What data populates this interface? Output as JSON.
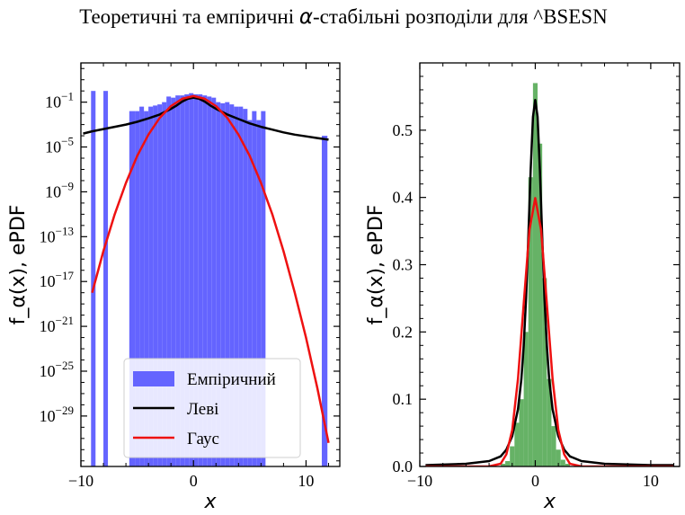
{
  "title_prefix": "Теоретичні та емпіричні ",
  "title_alpha": "α",
  "title_suffix": "-стабільні розподіли для ^BSESN",
  "colors": {
    "empirical_left": "#6464ff",
    "empirical_right": "#66b266",
    "levy": "#000000",
    "gauss": "#ee1111"
  },
  "chart_data": [
    {
      "type": "bar",
      "scale_y": "log",
      "xlabel": "x",
      "ylabel": "f_α(x), ePDF",
      "xlim": [
        -10,
        13
      ],
      "ylim_log10": [
        -33.5,
        2.5
      ],
      "xticks": [
        -10,
        0,
        10
      ],
      "xtick_labels": [
        "−10",
        "0",
        "10"
      ],
      "ytick_exponents": [
        -1,
        -5,
        -9,
        -13,
        -17,
        -21,
        -25,
        -29
      ],
      "ytick_base": "10",
      "legend": {
        "placement": "lower center",
        "entries": [
          "Емпіричний",
          "Леві",
          "Гаус"
        ]
      },
      "histogram": {
        "bins": [
          {
            "x0": -9.1,
            "x1": -8.7,
            "log10": 0
          },
          {
            "x0": -8.0,
            "x1": -7.6,
            "log10": 0
          },
          {
            "x0": -5.7,
            "x1": -5.2,
            "log10": -1.8
          },
          {
            "x0": -5.2,
            "x1": -4.8,
            "log10": -1.8
          },
          {
            "x0": -4.8,
            "x1": -4.4,
            "log10": -1.4
          },
          {
            "x0": -4.4,
            "x1": -4.0,
            "log10": -1.8
          },
          {
            "x0": -4.0,
            "x1": -3.6,
            "log10": -1.4
          },
          {
            "x0": -3.6,
            "x1": -3.2,
            "log10": -1.3
          },
          {
            "x0": -3.2,
            "x1": -2.8,
            "log10": -1.2
          },
          {
            "x0": -2.8,
            "x1": -2.4,
            "log10": -1.0
          },
          {
            "x0": -2.4,
            "x1": -2.0,
            "log10": -0.5
          },
          {
            "x0": -2.0,
            "x1": -1.6,
            "log10": -0.6
          },
          {
            "x0": -1.6,
            "x1": -1.2,
            "log10": -0.4
          },
          {
            "x0": -1.2,
            "x1": -0.8,
            "log10": -0.4
          },
          {
            "x0": -0.8,
            "x1": -0.4,
            "log10": -0.3
          },
          {
            "x0": -0.4,
            "x1": 0.0,
            "log10": -0.2
          },
          {
            "x0": 0.0,
            "x1": 0.4,
            "log10": -0.3
          },
          {
            "x0": 0.4,
            "x1": 0.8,
            "log10": -0.3
          },
          {
            "x0": 0.8,
            "x1": 1.2,
            "log10": -0.4
          },
          {
            "x0": 1.2,
            "x1": 1.6,
            "log10": -0.5
          },
          {
            "x0": 1.6,
            "x1": 2.0,
            "log10": -0.6
          },
          {
            "x0": 2.0,
            "x1": 2.4,
            "log10": -1.0
          },
          {
            "x0": 2.4,
            "x1": 2.8,
            "log10": -1.1
          },
          {
            "x0": 2.8,
            "x1": 3.2,
            "log10": -1.0
          },
          {
            "x0": 3.2,
            "x1": 3.6,
            "log10": -1.2
          },
          {
            "x0": 3.6,
            "x1": 4.0,
            "log10": -1.4
          },
          {
            "x0": 4.0,
            "x1": 4.4,
            "log10": -1.4
          },
          {
            "x0": 4.4,
            "x1": 4.8,
            "log10": -1.6
          },
          {
            "x0": 4.8,
            "x1": 5.2,
            "log10": -2.6
          },
          {
            "x0": 5.2,
            "x1": 5.6,
            "log10": -1.8
          },
          {
            "x0": 5.6,
            "x1": 6.0,
            "log10": -2.6
          },
          {
            "x0": 6.0,
            "x1": 6.4,
            "log10": -1.8
          },
          {
            "x0": 11.4,
            "x1": 11.9,
            "log10": -4.0
          }
        ]
      },
      "series": [
        {
          "name": "Леві",
          "x": [
            -9.8,
            -9,
            -8,
            -7,
            -6,
            -5,
            -4,
            -3,
            -2,
            -1.5,
            -1,
            -0.5,
            0,
            0.5,
            1,
            1.5,
            2,
            3,
            4,
            5,
            6,
            7,
            8,
            9,
            10,
            11,
            12
          ],
          "log10": [
            -3.8,
            -3.6,
            -3.4,
            -3.2,
            -3.0,
            -2.75,
            -2.45,
            -2.1,
            -1.6,
            -1.3,
            -0.95,
            -0.7,
            -0.6,
            -0.7,
            -0.95,
            -1.3,
            -1.6,
            -2.1,
            -2.5,
            -2.9,
            -3.2,
            -3.45,
            -3.7,
            -3.9,
            -4.05,
            -4.2,
            -4.35
          ]
        },
        {
          "name": "Гаус",
          "x": [
            -9,
            -8,
            -7,
            -6,
            -5,
            -4,
            -3,
            -2,
            -1,
            0,
            1,
            2,
            3,
            4,
            5,
            6,
            7,
            8,
            9,
            10,
            11,
            12
          ],
          "log10": [
            -18.0,
            -14.3,
            -11.0,
            -8.2,
            -5.8,
            -3.9,
            -2.4,
            -1.35,
            -0.7,
            -0.45,
            -0.7,
            -1.35,
            -2.4,
            -3.9,
            -5.8,
            -8.2,
            -11.0,
            -14.3,
            -18.0,
            -22.0,
            -26.5,
            -31.4
          ]
        }
      ]
    },
    {
      "type": "bar",
      "scale_y": "linear",
      "xlabel": "x",
      "ylabel": "f_α(x), ePDF",
      "xlim": [
        -10,
        12.5
      ],
      "ylim": [
        0,
        0.6
      ],
      "xticks": [
        -10,
        0,
        10
      ],
      "xtick_labels": [
        "−10",
        "0",
        "10"
      ],
      "yticks": [
        0.0,
        0.1,
        0.2,
        0.3,
        0.4,
        0.5
      ],
      "ytick_labels": [
        "0.0",
        "0.1",
        "0.2",
        "0.3",
        "0.4",
        "0.5"
      ],
      "histogram": {
        "bins": [
          {
            "x0": -3.0,
            "x1": -2.6,
            "y": 0.004
          },
          {
            "x0": -2.6,
            "x1": -2.2,
            "y": 0.008
          },
          {
            "x0": -2.2,
            "x1": -1.8,
            "y": 0.03
          },
          {
            "x0": -1.8,
            "x1": -1.4,
            "y": 0.065
          },
          {
            "x0": -1.4,
            "x1": -1.0,
            "y": 0.1
          },
          {
            "x0": -1.0,
            "x1": -0.6,
            "y": 0.2
          },
          {
            "x0": -0.6,
            "x1": -0.2,
            "y": 0.43
          },
          {
            "x0": -0.2,
            "x1": 0.2,
            "y": 0.57
          },
          {
            "x0": 0.2,
            "x1": 0.6,
            "y": 0.48
          },
          {
            "x0": 0.6,
            "x1": 1.0,
            "y": 0.28
          },
          {
            "x0": 1.0,
            "x1": 1.4,
            "y": 0.13
          },
          {
            "x0": 1.4,
            "x1": 1.8,
            "y": 0.06
          },
          {
            "x0": 1.8,
            "x1": 2.2,
            "y": 0.025
          },
          {
            "x0": 2.2,
            "x1": 2.6,
            "y": 0.01
          },
          {
            "x0": 2.6,
            "x1": 3.0,
            "y": 0.004
          }
        ]
      },
      "series": [
        {
          "name": "Леві",
          "x": [
            -9.5,
            -6,
            -4,
            -3,
            -2.5,
            -2,
            -1.5,
            -1.2,
            -1,
            -0.8,
            -0.6,
            -0.4,
            -0.2,
            0,
            0.2,
            0.4,
            0.6,
            0.8,
            1,
            1.2,
            1.5,
            2,
            2.5,
            3,
            4,
            6,
            10,
            12
          ],
          "y": [
            0.002,
            0.004,
            0.008,
            0.015,
            0.025,
            0.045,
            0.085,
            0.13,
            0.18,
            0.25,
            0.34,
            0.44,
            0.52,
            0.545,
            0.52,
            0.44,
            0.34,
            0.25,
            0.18,
            0.13,
            0.085,
            0.045,
            0.025,
            0.015,
            0.008,
            0.004,
            0.002,
            0.002
          ]
        },
        {
          "name": "Гаус",
          "x": [
            -9.5,
            -4,
            -3,
            -2.5,
            -2,
            -1.5,
            -1,
            -0.5,
            0,
            0.5,
            1,
            1.5,
            2,
            2.5,
            3,
            4,
            10,
            12
          ],
          "y": [
            0,
            0.0001,
            0.004,
            0.018,
            0.054,
            0.13,
            0.242,
            0.352,
            0.399,
            0.352,
            0.242,
            0.13,
            0.054,
            0.018,
            0.004,
            0.0001,
            0,
            0
          ]
        }
      ]
    }
  ]
}
